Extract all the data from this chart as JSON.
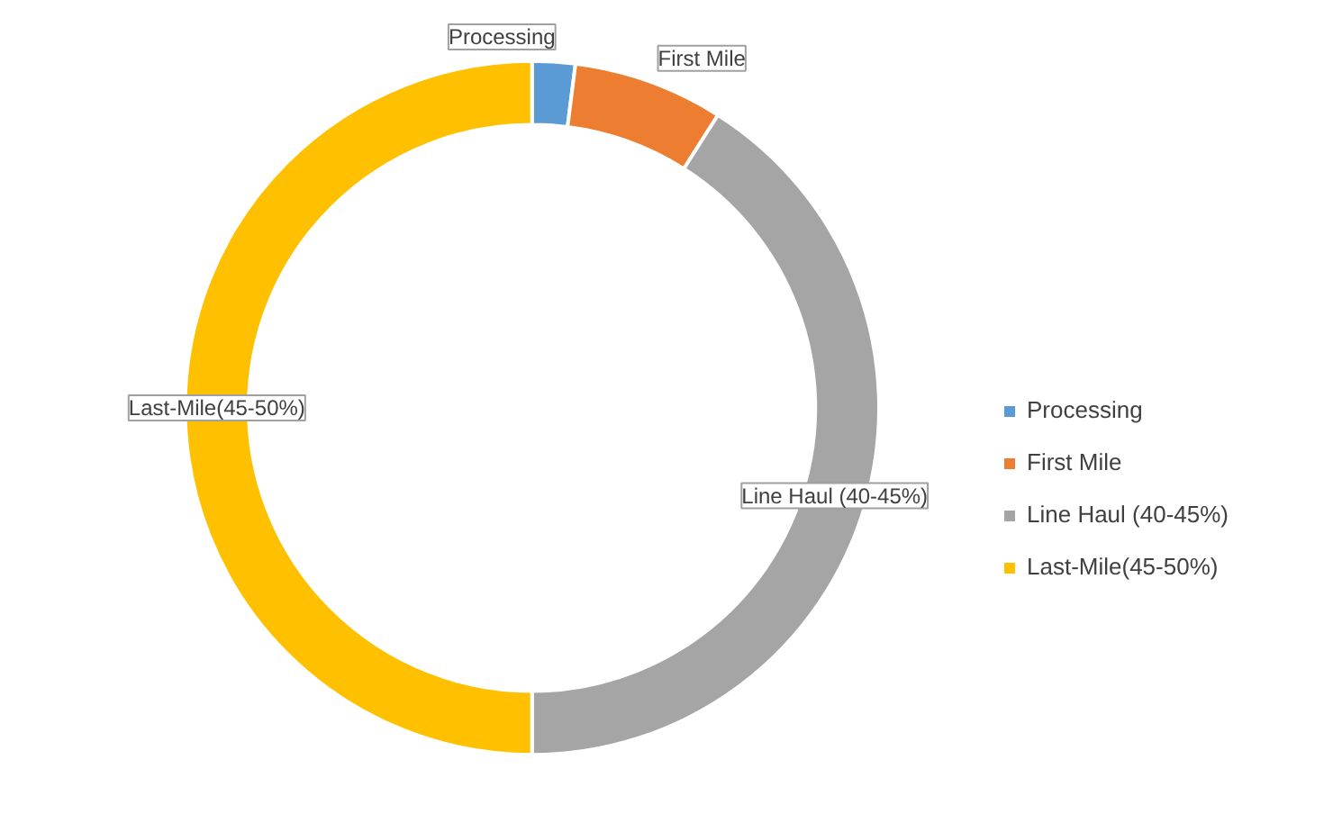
{
  "chart_data": {
    "type": "donut",
    "categories": [
      "Processing",
      "First Mile",
      "Line Haul (40-45%)",
      "Last-Mile(45-50%)"
    ],
    "values": [
      2,
      7,
      41,
      50
    ],
    "colors": [
      "#5b9bd5",
      "#ed7d31",
      "#a5a5a5",
      "#ffc000"
    ],
    "legend": "right"
  }
}
